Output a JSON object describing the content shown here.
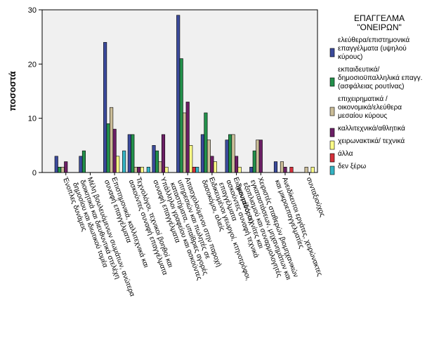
{
  "chart_data": {
    "type": "bar",
    "title": "",
    "ylabel": "ποσοστά",
    "xlabel": "",
    "ylim": [
      0,
      30
    ],
    "yticks": [
      0,
      10,
      20,
      30
    ],
    "grid": false,
    "legend_position": "right",
    "legend_title": [
      "ΕΠΑΓΓΕΛΜΑ",
      "\"ΟΝΕΙΡΩΝ\""
    ],
    "categories": [
      "Ένοπλες δυνάμεις",
      "Μέλη βουλευόμενων σωμάτων, ανώτερα διοικητικά και διευθυντικά στελέχη δημοσίου και ιδιωτικού τομέα",
      "Επιστημονικά, καλλιτεχνικά και συναφή επαγγέλματα",
      "Τεχνολόγοι, τεχνικοί βοηθοί και ασκούντες συναφή επαγγέλματα",
      "Υπάλληλοι γραφείου και ασκούντες συναφή επαγγέλματα",
      "Απασχολούμενοι στην παροχή υπηρεσιών και πωλητές σε καταστήματα, υπαίθριες αγορές",
      "Ειδικευμένοι γεωργοί, κτηνοτρόφοι, δασοκόμοι, αλιείς",
      "Ειδικευμένοι τεχνίτες και ασκούντες συναφή τεχνικά επαγγέλματα",
      "Χειριστές σταθερών βιομηχανικών εγκαταστάσεων, μηχανημάτων και εξοπλισμού και συναρμολογητές (μονταδόροι)",
      "Ανειδίκευτοι εργάτες, χειρώνακτες και μικροεπαγγελματίες",
      "συνταξιούχος"
    ],
    "series": [
      {
        "name": "ελεύθερα/επιστημονικά επαγγέλματα (υψηλού κύρους)",
        "color": "#3b4a9b",
        "values": [
          3,
          3,
          24,
          7,
          5,
          29,
          7,
          6,
          1,
          2,
          0
        ]
      },
      {
        "name": "εκπαιδευτικά/ δημοσιοϋπαλληλικά επαγγ. (ασφάλειας ρουτίνας)",
        "color": "#23904b",
        "values": [
          1,
          4,
          9,
          7,
          4,
          21,
          11,
          7,
          4,
          0,
          0
        ]
      },
      {
        "name": "επιχειρηματικά / οικονομικά/ελεύθερα μεσαίου κύρους",
        "color": "#cbbd98",
        "values": [
          1,
          0,
          12,
          1,
          2,
          11,
          6,
          7,
          6,
          2,
          1
        ]
      },
      {
        "name": "καλλιτεχνικά/αθλητικά",
        "color": "#6c1f66",
        "values": [
          2,
          0,
          8,
          1,
          7,
          13,
          3,
          3,
          6,
          1,
          0
        ]
      },
      {
        "name": "χειρωνακτικά/ τεχνικά",
        "color": "#ffff88",
        "values": [
          0,
          0,
          3,
          1,
          1,
          5,
          2,
          1,
          0,
          0,
          1
        ]
      },
      {
        "name": "άλλα",
        "color": "#d4303a",
        "values": [
          0,
          0,
          0,
          0,
          0,
          1,
          0,
          0,
          0,
          1,
          0
        ]
      },
      {
        "name": "δεν ξέρω",
        "color": "#33b4c4",
        "values": [
          0,
          0,
          4,
          1,
          0,
          1,
          0,
          0,
          0,
          0,
          0
        ]
      }
    ]
  }
}
